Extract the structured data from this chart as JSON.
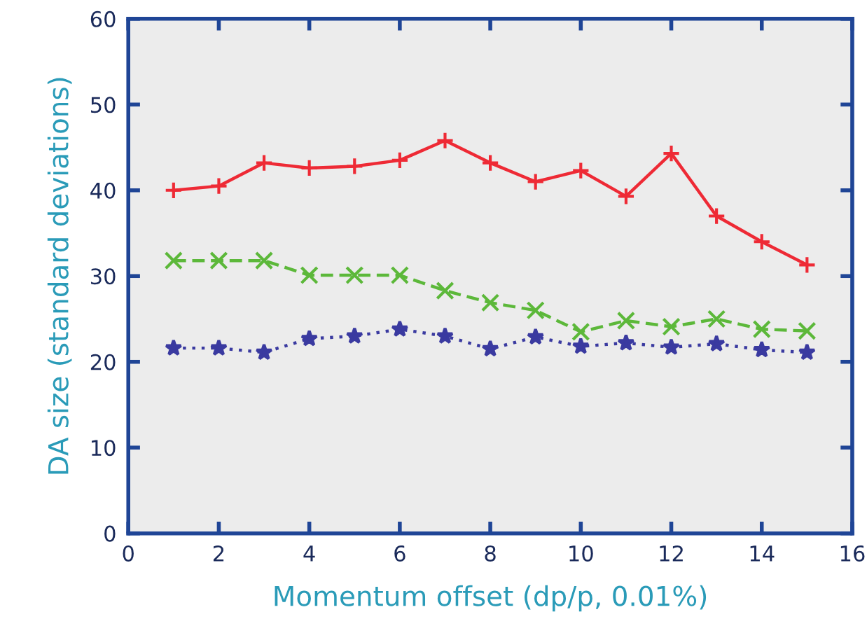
{
  "chart_data": {
    "type": "line",
    "xlabel": "Momentum offset (dp/p, 0.01%)",
    "ylabel": "DA size (standard deviations)",
    "x": [
      1,
      2,
      3,
      4,
      5,
      6,
      7,
      8,
      9,
      10,
      11,
      12,
      13,
      14,
      15
    ],
    "series": [
      {
        "color": "#ee2a35",
        "marker": "plus",
        "line_style": "solid",
        "values": [
          40,
          40.5,
          43.2,
          42.6,
          42.8,
          43.5,
          45.8,
          43.2,
          41,
          42.3,
          39.3,
          44.3,
          37,
          34,
          31.3
        ]
      },
      {
        "color": "#5cb83a",
        "marker": "cross",
        "line_style": "dashed",
        "values": [
          31.8,
          31.8,
          31.8,
          30.1,
          30.1,
          30.1,
          28.3,
          26.9,
          26,
          23.5,
          24.8,
          24.1,
          25,
          23.8,
          23.6
        ]
      },
      {
        "color": "#3a3aa0",
        "marker": "star",
        "line_style": "dotted",
        "values": [
          21.6,
          21.6,
          21.1,
          22.7,
          23,
          23.8,
          23,
          21.5,
          22.9,
          21.8,
          22.2,
          21.7,
          22.1,
          21.4,
          21.1
        ]
      }
    ],
    "xlim": [
      0,
      16
    ],
    "xticks": [
      0,
      2,
      4,
      6,
      8,
      10,
      12,
      14,
      16
    ],
    "ylim": [
      0,
      60
    ],
    "yticks": [
      0,
      10,
      20,
      30,
      40,
      50,
      60
    ],
    "grid": false,
    "legend": false
  }
}
